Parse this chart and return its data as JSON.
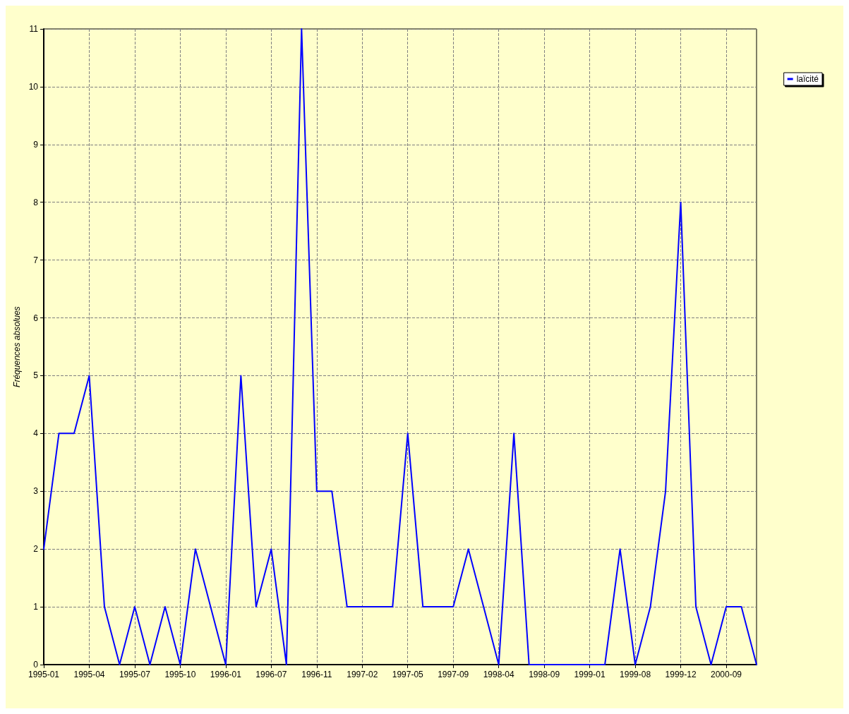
{
  "chart_data": {
    "type": "line",
    "ylabel": "Fréquences absolues",
    "categories": [
      "1995-01",
      null,
      null,
      "1995-04",
      null,
      null,
      "1995-07",
      null,
      null,
      "1995-10",
      null,
      null,
      "1996-01",
      null,
      null,
      "1996-07",
      null,
      null,
      "1996-11",
      null,
      null,
      "1997-02",
      null,
      null,
      "1997-05",
      null,
      null,
      "1997-09",
      null,
      null,
      "1998-04",
      null,
      null,
      "1998-09",
      null,
      null,
      "1999-01",
      null,
      null,
      "1999-08",
      null,
      null,
      "1999-12",
      null,
      null,
      "2000-09",
      null,
      null
    ],
    "series": [
      {
        "name": "laïcité",
        "color": "#0000ff",
        "values": [
          2,
          4,
          4,
          5,
          1,
          0,
          1,
          0,
          1,
          0,
          2,
          1,
          0,
          5,
          1,
          2,
          0,
          11,
          3,
          3,
          1,
          1,
          1,
          1,
          4,
          1,
          1,
          1,
          2,
          1,
          0,
          4,
          0,
          0,
          0,
          0,
          0,
          0,
          2,
          0,
          1,
          3,
          8,
          1,
          0,
          1,
          1,
          0
        ]
      }
    ],
    "ylim": [
      0,
      11
    ],
    "yticks": [
      0,
      1,
      2,
      3,
      4,
      5,
      6,
      7,
      8,
      9,
      10,
      11
    ],
    "grid": true,
    "legend": "top right",
    "marker": "none",
    "line_style": "solid"
  }
}
